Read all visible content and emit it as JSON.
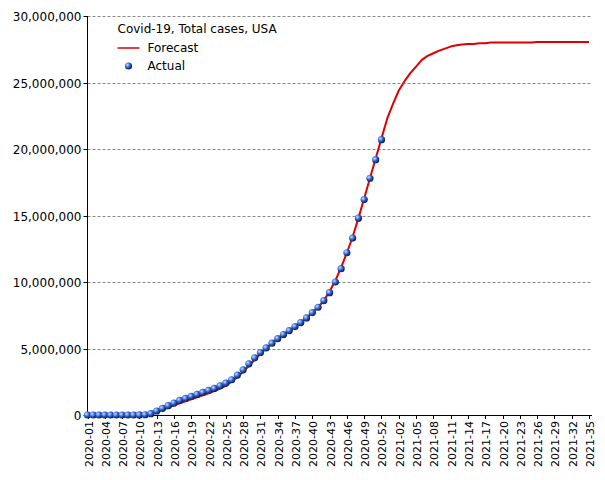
{
  "chart_data": {
    "type": "line",
    "title": "Covid-19, Total cases, USA",
    "categories": [
      "2020-01",
      null,
      null,
      "2020-04",
      null,
      null,
      "2020-07",
      null,
      null,
      "2020-10",
      null,
      null,
      "2020-13",
      null,
      null,
      "2020-16",
      null,
      null,
      "2020-19",
      null,
      null,
      "2020-22",
      null,
      null,
      "2020-25",
      null,
      null,
      "2020-28",
      null,
      null,
      "2020-31",
      null,
      null,
      "2020-34",
      null,
      null,
      "2020-37",
      null,
      null,
      "2020-40",
      null,
      null,
      "2020-43",
      null,
      null,
      "2020-46",
      null,
      null,
      "2020-49",
      null,
      null,
      "2020-52",
      null,
      null,
      "2021-02",
      null,
      null,
      "2021-05",
      null,
      null,
      "2021-08",
      null,
      null,
      "2021-11",
      null,
      null,
      "2021-14",
      null,
      null,
      "2021-17",
      null,
      null,
      "2021-20",
      null,
      null,
      "2021-23",
      null,
      null,
      "2021-26",
      null,
      null,
      "2021-29",
      null,
      null,
      "2021-32",
      null,
      null,
      "2021-35"
    ],
    "series": [
      {
        "name": "Forecast",
        "type": "line",
        "color": "#e00000",
        "line_style": "solid",
        "values": [
          0,
          0,
          0,
          0,
          0,
          0,
          0,
          0,
          0,
          0,
          10000,
          50000,
          200000,
          380000,
          550000,
          720000,
          880000,
          1030000,
          1180000,
          1330000,
          1480000,
          1630000,
          1800000,
          1980000,
          2200000,
          2500000,
          2850000,
          3250000,
          3700000,
          4150000,
          4600000,
          5000000,
          5400000,
          5750000,
          6050000,
          6350000,
          6650000,
          6950000,
          7300000,
          7700000,
          8100000,
          8600000,
          9300000,
          10100000,
          11100000,
          12200000,
          13400000,
          14800000,
          16300000,
          17800000,
          19300000,
          20800000,
          22300000,
          23400000,
          24400000,
          25100000,
          25700000,
          26200000,
          26700000,
          27000000,
          27200000,
          27400000,
          27550000,
          27700000,
          27800000,
          27850000,
          27900000,
          27900000,
          27950000,
          27950000,
          28000000,
          28000000,
          28000000,
          28000000,
          28000000,
          28000000,
          28000000,
          28000000,
          28050000,
          28050000,
          28050000,
          28050000,
          28050000,
          28050000,
          28050000,
          28050000,
          28050000,
          28050000
        ]
      },
      {
        "name": "Actual",
        "type": "scatter",
        "color": "#2a5fd0",
        "marker": "circle",
        "values": [
          0,
          0,
          0,
          0,
          0,
          0,
          0,
          0,
          0,
          5000,
          20000,
          100000,
          300000,
          500000,
          700000,
          900000,
          1100000,
          1250000,
          1400000,
          1550000,
          1700000,
          1850000,
          2000000,
          2200000,
          2400000,
          2650000,
          3000000,
          3400000,
          3850000,
          4300000,
          4700000,
          5050000,
          5400000,
          5750000,
          6050000,
          6350000,
          6650000,
          6950000,
          7300000,
          7700000,
          8100000,
          8600000,
          9200000,
          10000000,
          11000000,
          12200000,
          13300000,
          14800000,
          16200000,
          17800000,
          19200000,
          20700000,
          null,
          null,
          null,
          null,
          null,
          null,
          null,
          null,
          null,
          null,
          null,
          null,
          null,
          null,
          null,
          null,
          null,
          null,
          null,
          null,
          null,
          null,
          null,
          null,
          null,
          null,
          null,
          null,
          null,
          null,
          null,
          null,
          null,
          null,
          null,
          null
        ]
      }
    ],
    "ylim": [
      0,
      30000000
    ],
    "yticks": [
      0,
      {
        "value": 5000000,
        "label": "5,000,000"
      },
      {
        "value": 10000000,
        "label": "10,000,000"
      },
      {
        "value": 15000000,
        "label": "15,000,000"
      },
      {
        "value": 20000000,
        "label": "20,000,000"
      },
      {
        "value": 25000000,
        "label": "25,000,000"
      },
      {
        "value": 30000000,
        "label": "30,000,000"
      }
    ],
    "grid": true,
    "legend": "top-left"
  }
}
